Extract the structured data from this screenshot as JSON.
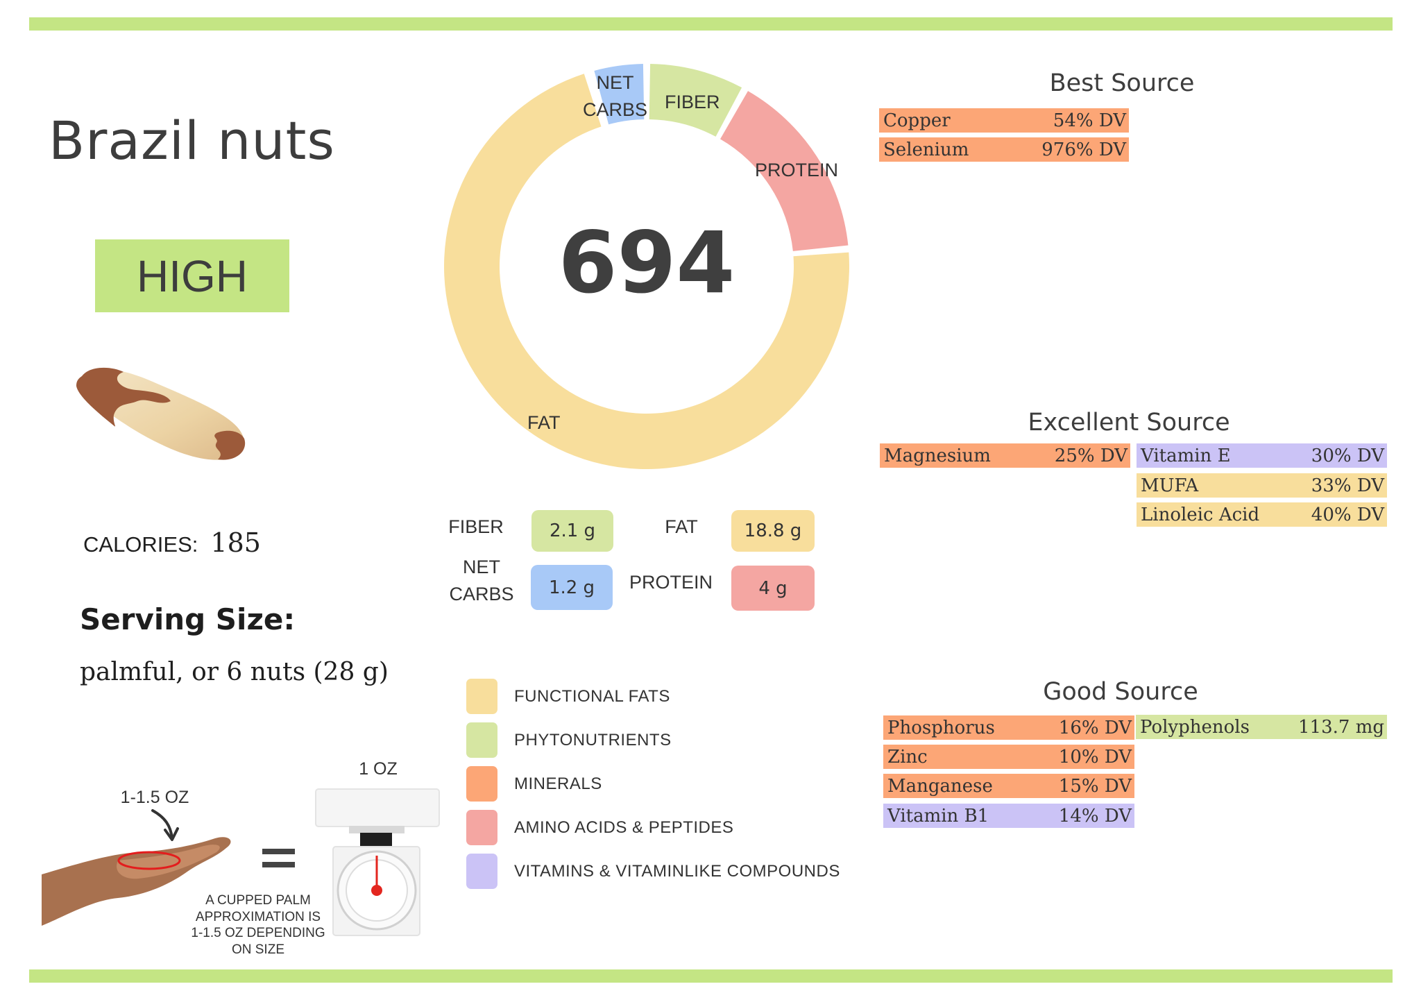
{
  "food": {
    "name": "Brazil nuts",
    "level": "HIGH",
    "calories_label": "CALORIES:",
    "calories_value": "185",
    "serving_title": "Serving Size:",
    "serving_value": "palmful, or 6 nuts (28 g)"
  },
  "colors": {
    "accent_bar": "#c4e584",
    "fats": "#f8de9c",
    "phyto": "#d6e6a2",
    "minerals": "#fca676",
    "amino": "#f4a6a2",
    "vitamins": "#cbc3f6",
    "net_carbs": "#a8c9f7"
  },
  "chart_data": {
    "type": "pie",
    "title": "694",
    "center_value": "694",
    "style": "donut",
    "categories": [
      "NET CARBS",
      "FIBER",
      "PROTEIN",
      "FAT"
    ],
    "values_grams": [
      1.2,
      2.1,
      4,
      18.8
    ],
    "approx_share_pct": [
      4,
      8,
      15,
      71
    ],
    "segment_angles_deg": [
      [
        -15,
        -1
      ],
      [
        1,
        28
      ],
      [
        30,
        84
      ],
      [
        86,
        342
      ]
    ],
    "colors": [
      "#a8c9f7",
      "#d6e6a2",
      "#f4a6a2",
      "#f8de9c"
    ],
    "labels": {
      "net_carbs_line1": "NET",
      "net_carbs_line2": "CARBS",
      "fiber": "FIBER",
      "protein": "PROTEIN",
      "fat": "FAT"
    }
  },
  "macros": {
    "fiber": {
      "label": "FIBER",
      "value": "2.1 g"
    },
    "net_carbs": {
      "label_line1": "NET",
      "label_line2": "CARBS",
      "value": "1.2 g"
    },
    "fat": {
      "label": "FAT",
      "value": "18.8 g"
    },
    "protein": {
      "label": "PROTEIN",
      "value": "4 g"
    }
  },
  "legend": [
    {
      "label": "FUNCTIONAL  FATS",
      "color": "#f8de9c"
    },
    {
      "label": "PHYTONUTRIENTS",
      "color": "#d6e6a2"
    },
    {
      "label": "MINERALS",
      "color": "#fca676"
    },
    {
      "label": "AMINO ACIDS & PEPTIDES",
      "color": "#f4a6a2"
    },
    {
      "label": "VITAMINS & VITAMINLIKE COMPOUNDS",
      "color": "#cbc3f6"
    }
  ],
  "sources": {
    "best": {
      "heading": "Best Source",
      "items": [
        {
          "name": "Copper",
          "value": "54% DV",
          "category": "minerals"
        },
        {
          "name": "Selenium",
          "value": "976% DV",
          "category": "minerals"
        }
      ]
    },
    "excellent": {
      "heading": "Excellent Source",
      "items": [
        {
          "name": "Magnesium",
          "value": "25% DV",
          "category": "minerals"
        },
        {
          "name": "Vitamin E",
          "value": "30% DV",
          "category": "vitamins"
        },
        {
          "name": "MUFA",
          "value": "33% DV",
          "category": "fats"
        },
        {
          "name": "Linoleic Acid",
          "value": "40% DV",
          "category": "fats"
        }
      ]
    },
    "good": {
      "heading": "Good Source",
      "items": [
        {
          "name": "Phosphorus",
          "value": "16% DV",
          "category": "minerals"
        },
        {
          "name": "Zinc",
          "value": "10% DV",
          "category": "minerals"
        },
        {
          "name": "Manganese",
          "value": "15% DV",
          "category": "minerals"
        },
        {
          "name": "Vitamin B1",
          "value": "14% DV",
          "category": "vitamins"
        },
        {
          "name": "Polyphenols",
          "value": "113.7 mg",
          "category": "phyto"
        }
      ]
    }
  },
  "illustration": {
    "palm_amount": "1-1.5 OZ",
    "scale_amount": "1 OZ",
    "equals": "=",
    "caption_lines": [
      "A CUPPED PALM",
      "APPROXIMATION IS",
      "1-1.5 OZ DEPENDING",
      "ON SIZE"
    ]
  }
}
